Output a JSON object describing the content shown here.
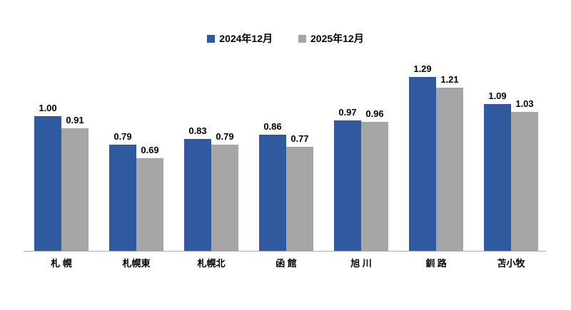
{
  "chart_data": {
    "type": "bar",
    "categories": [
      "札 幌",
      "札幌東",
      "札幌北",
      "函 館",
      "旭 川",
      "釧 路",
      "苫小牧"
    ],
    "series": [
      {
        "name": "2024年12月",
        "color": "#305A9F",
        "values": [
          1.0,
          0.79,
          0.83,
          0.86,
          0.97,
          1.29,
          1.09
        ]
      },
      {
        "name": "2025年12月",
        "color": "#A6A6A6",
        "values": [
          0.91,
          0.69,
          0.79,
          0.77,
          0.96,
          1.21,
          1.03
        ]
      }
    ],
    "title": "",
    "xlabel": "",
    "ylabel": "",
    "ylim": [
      0,
      1.4
    ],
    "grid": false,
    "legend_position": "top",
    "value_labels": true,
    "value_label_format": "two-decimals",
    "axis_line_color": "#ababab",
    "background_color": "#ffffff",
    "text_color": "#000000"
  }
}
